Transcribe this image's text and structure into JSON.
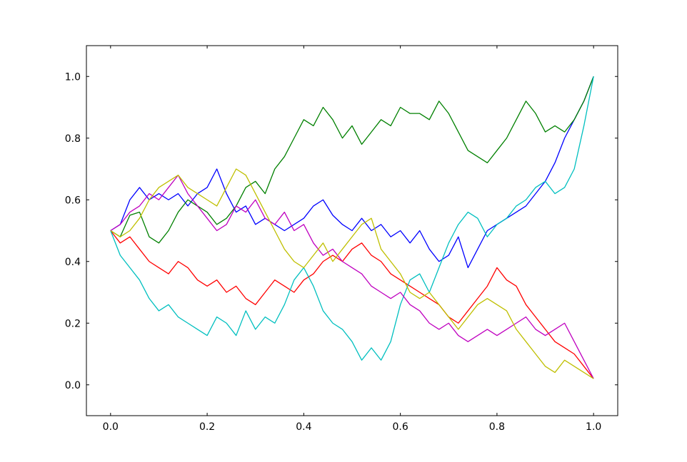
{
  "chart_data": {
    "type": "line",
    "title": "",
    "xlabel": "",
    "ylabel": "",
    "xlim": [
      -0.05,
      1.05
    ],
    "ylim": [
      -0.1,
      1.1
    ],
    "grid": false,
    "legend": "none",
    "x_ticks": [
      {
        "value": 0.0,
        "label": "0.0"
      },
      {
        "value": 0.2,
        "label": "0.2"
      },
      {
        "value": 0.4,
        "label": "0.4"
      },
      {
        "value": 0.6,
        "label": "0.6"
      },
      {
        "value": 0.8,
        "label": "0.8"
      },
      {
        "value": 1.0,
        "label": "1.0"
      }
    ],
    "y_ticks": [
      {
        "value": 0.0,
        "label": "0.0"
      },
      {
        "value": 0.2,
        "label": "0.2"
      },
      {
        "value": 0.4,
        "label": "0.4"
      },
      {
        "value": 0.6,
        "label": "0.6"
      },
      {
        "value": 0.8,
        "label": "0.8"
      },
      {
        "value": 1.0,
        "label": "1.0"
      }
    ],
    "series": [
      {
        "color": "#0000ff",
        "x": [
          0,
          0.02,
          0.04,
          0.06,
          0.08,
          0.1,
          0.12,
          0.14,
          0.16,
          0.18,
          0.2,
          0.22,
          0.24,
          0.26,
          0.28,
          0.3,
          0.32,
          0.34,
          0.36,
          0.38,
          0.4,
          0.42,
          0.44,
          0.46,
          0.48,
          0.5,
          0.52,
          0.54,
          0.56,
          0.58,
          0.6,
          0.62,
          0.64,
          0.66,
          0.68,
          0.7,
          0.72,
          0.74,
          0.76,
          0.78,
          0.8,
          0.82,
          0.84,
          0.86,
          0.88,
          0.9,
          0.92,
          0.94,
          0.96,
          0.98,
          1.0
        ],
        "y": [
          0.5,
          0.52,
          0.6,
          0.64,
          0.6,
          0.62,
          0.6,
          0.62,
          0.58,
          0.62,
          0.64,
          0.7,
          0.62,
          0.56,
          0.58,
          0.52,
          0.54,
          0.52,
          0.5,
          0.52,
          0.54,
          0.58,
          0.6,
          0.55,
          0.52,
          0.5,
          0.54,
          0.5,
          0.52,
          0.48,
          0.5,
          0.46,
          0.5,
          0.44,
          0.4,
          0.42,
          0.48,
          0.38,
          0.44,
          0.5,
          0.52,
          0.54,
          0.56,
          0.58,
          0.62,
          0.66,
          0.72,
          0.8,
          0.86,
          0.92,
          1.0
        ]
      },
      {
        "color": "#008000",
        "x": [
          0,
          0.02,
          0.04,
          0.06,
          0.08,
          0.1,
          0.12,
          0.14,
          0.16,
          0.18,
          0.2,
          0.22,
          0.24,
          0.26,
          0.28,
          0.3,
          0.32,
          0.34,
          0.36,
          0.38,
          0.4,
          0.42,
          0.44,
          0.46,
          0.48,
          0.5,
          0.52,
          0.54,
          0.56,
          0.58,
          0.6,
          0.62,
          0.64,
          0.66,
          0.68,
          0.7,
          0.72,
          0.74,
          0.76,
          0.78,
          0.8,
          0.82,
          0.84,
          0.86,
          0.88,
          0.9,
          0.92,
          0.94,
          0.96,
          0.98,
          1.0
        ],
        "y": [
          0.5,
          0.48,
          0.55,
          0.56,
          0.48,
          0.46,
          0.5,
          0.56,
          0.6,
          0.58,
          0.56,
          0.52,
          0.54,
          0.58,
          0.64,
          0.66,
          0.62,
          0.7,
          0.74,
          0.8,
          0.86,
          0.84,
          0.9,
          0.86,
          0.8,
          0.84,
          0.78,
          0.82,
          0.86,
          0.84,
          0.9,
          0.88,
          0.88,
          0.86,
          0.92,
          0.88,
          0.82,
          0.76,
          0.74,
          0.72,
          0.76,
          0.8,
          0.86,
          0.92,
          0.88,
          0.82,
          0.84,
          0.82,
          0.86,
          0.92,
          1.0
        ]
      },
      {
        "color": "#ff0000",
        "x": [
          0,
          0.02,
          0.04,
          0.06,
          0.08,
          0.1,
          0.12,
          0.14,
          0.16,
          0.18,
          0.2,
          0.22,
          0.24,
          0.26,
          0.28,
          0.3,
          0.32,
          0.34,
          0.36,
          0.38,
          0.4,
          0.42,
          0.44,
          0.46,
          0.48,
          0.5,
          0.52,
          0.54,
          0.56,
          0.58,
          0.6,
          0.62,
          0.64,
          0.66,
          0.68,
          0.7,
          0.72,
          0.74,
          0.76,
          0.78,
          0.8,
          0.82,
          0.84,
          0.86,
          0.88,
          0.9,
          0.92,
          0.94,
          0.96,
          0.98,
          1.0
        ],
        "y": [
          0.5,
          0.46,
          0.48,
          0.44,
          0.4,
          0.38,
          0.36,
          0.4,
          0.38,
          0.34,
          0.32,
          0.34,
          0.3,
          0.32,
          0.28,
          0.26,
          0.3,
          0.34,
          0.32,
          0.3,
          0.34,
          0.36,
          0.4,
          0.42,
          0.4,
          0.44,
          0.46,
          0.42,
          0.4,
          0.36,
          0.34,
          0.32,
          0.3,
          0.28,
          0.26,
          0.22,
          0.2,
          0.24,
          0.28,
          0.32,
          0.38,
          0.34,
          0.32,
          0.26,
          0.22,
          0.18,
          0.14,
          0.12,
          0.1,
          0.06,
          0.02
        ]
      },
      {
        "color": "#00bfbf",
        "x": [
          0,
          0.02,
          0.04,
          0.06,
          0.08,
          0.1,
          0.12,
          0.14,
          0.16,
          0.18,
          0.2,
          0.22,
          0.24,
          0.26,
          0.28,
          0.3,
          0.32,
          0.34,
          0.36,
          0.38,
          0.4,
          0.42,
          0.44,
          0.46,
          0.48,
          0.5,
          0.52,
          0.54,
          0.56,
          0.58,
          0.6,
          0.62,
          0.64,
          0.66,
          0.68,
          0.7,
          0.72,
          0.74,
          0.76,
          0.78,
          0.8,
          0.82,
          0.84,
          0.86,
          0.88,
          0.9,
          0.92,
          0.94,
          0.96,
          0.98,
          1.0
        ],
        "y": [
          0.5,
          0.42,
          0.38,
          0.34,
          0.28,
          0.24,
          0.26,
          0.22,
          0.2,
          0.18,
          0.16,
          0.22,
          0.2,
          0.16,
          0.24,
          0.18,
          0.22,
          0.2,
          0.26,
          0.34,
          0.38,
          0.32,
          0.24,
          0.2,
          0.18,
          0.14,
          0.08,
          0.12,
          0.08,
          0.14,
          0.26,
          0.34,
          0.36,
          0.3,
          0.38,
          0.46,
          0.52,
          0.56,
          0.54,
          0.48,
          0.52,
          0.54,
          0.58,
          0.6,
          0.64,
          0.66,
          0.62,
          0.64,
          0.7,
          0.84,
          1.0
        ]
      },
      {
        "color": "#bf00bf",
        "x": [
          0,
          0.02,
          0.04,
          0.06,
          0.08,
          0.1,
          0.12,
          0.14,
          0.16,
          0.18,
          0.2,
          0.22,
          0.24,
          0.26,
          0.28,
          0.3,
          0.32,
          0.34,
          0.36,
          0.38,
          0.4,
          0.42,
          0.44,
          0.46,
          0.48,
          0.5,
          0.52,
          0.54,
          0.56,
          0.58,
          0.6,
          0.62,
          0.64,
          0.66,
          0.68,
          0.7,
          0.72,
          0.74,
          0.76,
          0.78,
          0.8,
          0.82,
          0.84,
          0.86,
          0.88,
          0.9,
          0.92,
          0.94,
          0.96,
          0.98,
          1.0
        ],
        "y": [
          0.5,
          0.52,
          0.56,
          0.58,
          0.62,
          0.6,
          0.64,
          0.68,
          0.62,
          0.58,
          0.54,
          0.5,
          0.52,
          0.58,
          0.56,
          0.6,
          0.54,
          0.52,
          0.56,
          0.5,
          0.52,
          0.46,
          0.42,
          0.44,
          0.4,
          0.38,
          0.36,
          0.32,
          0.3,
          0.28,
          0.3,
          0.26,
          0.24,
          0.2,
          0.18,
          0.2,
          0.16,
          0.14,
          0.16,
          0.18,
          0.16,
          0.18,
          0.2,
          0.22,
          0.18,
          0.16,
          0.18,
          0.2,
          0.14,
          0.08,
          0.02
        ]
      },
      {
        "color": "#bfbf00",
        "x": [
          0,
          0.02,
          0.04,
          0.06,
          0.08,
          0.1,
          0.12,
          0.14,
          0.16,
          0.18,
          0.2,
          0.22,
          0.24,
          0.26,
          0.28,
          0.3,
          0.32,
          0.34,
          0.36,
          0.38,
          0.4,
          0.42,
          0.44,
          0.46,
          0.48,
          0.5,
          0.52,
          0.54,
          0.56,
          0.58,
          0.6,
          0.62,
          0.64,
          0.66,
          0.68,
          0.7,
          0.72,
          0.74,
          0.76,
          0.78,
          0.8,
          0.82,
          0.84,
          0.86,
          0.88,
          0.9,
          0.92,
          0.94,
          0.96,
          0.98,
          1.0
        ],
        "y": [
          0.5,
          0.48,
          0.5,
          0.54,
          0.6,
          0.64,
          0.66,
          0.68,
          0.64,
          0.62,
          0.6,
          0.58,
          0.64,
          0.7,
          0.68,
          0.62,
          0.56,
          0.5,
          0.44,
          0.4,
          0.38,
          0.42,
          0.46,
          0.4,
          0.44,
          0.48,
          0.52,
          0.54,
          0.44,
          0.4,
          0.36,
          0.3,
          0.28,
          0.3,
          0.26,
          0.22,
          0.18,
          0.22,
          0.26,
          0.28,
          0.26,
          0.24,
          0.18,
          0.14,
          0.1,
          0.06,
          0.04,
          0.08,
          0.06,
          0.04,
          0.02
        ]
      }
    ]
  }
}
